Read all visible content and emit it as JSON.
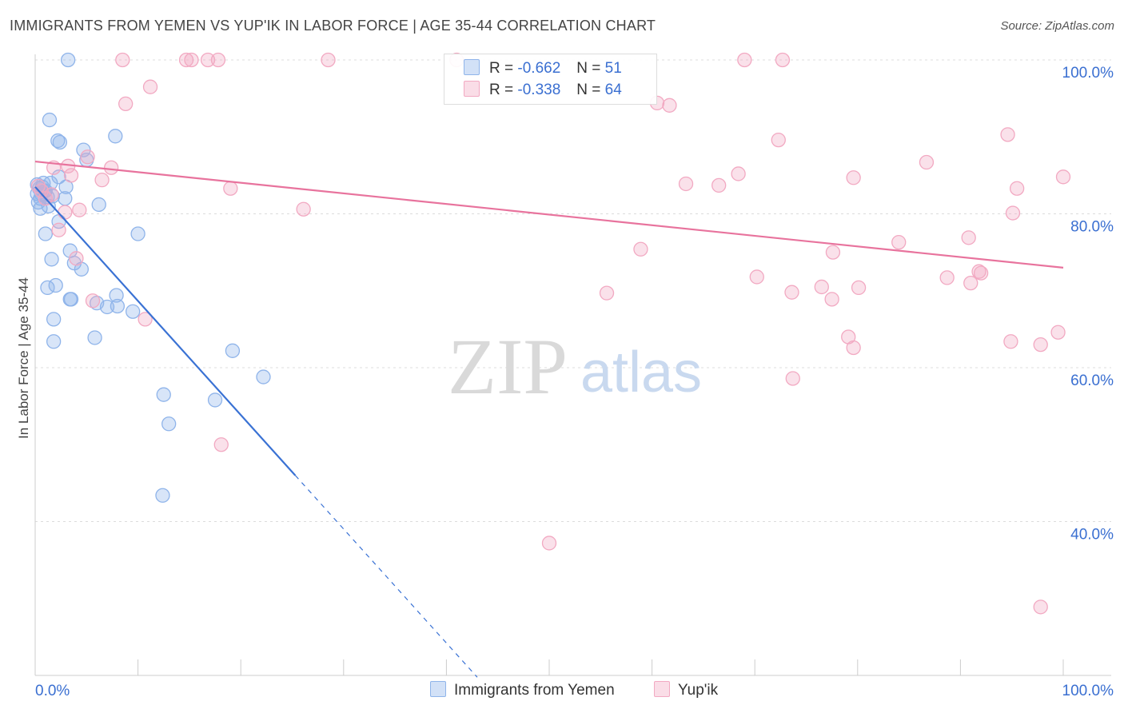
{
  "header": {
    "title": "IMMIGRANTS FROM YEMEN VS YUP'IK IN LABOR FORCE | AGE 35-44 CORRELATION CHART",
    "source": "Source: ZipAtlas.com"
  },
  "watermark": {
    "zip": "ZIP",
    "atlas": "atlas"
  },
  "legend": {
    "r_label": "R =",
    "n_label": "N =",
    "rows": [
      {
        "r": "-0.662",
        "n": "51",
        "color": "#8fb4ea"
      },
      {
        "r": "-0.338",
        "n": "64",
        "color": "#f2a9c2"
      }
    ]
  },
  "chart_data": {
    "type": "scatter",
    "title": "IMMIGRANTS FROM YEMEN VS YUP'IK IN LABOR FORCE | AGE 35-44 CORRELATION CHART",
    "xlabel": "",
    "ylabel": "In Labor Force | Age 35-44",
    "xlim": [
      0,
      100
    ],
    "ylim": [
      20,
      100
    ],
    "x_tick_labels": [
      "0.0%",
      "100.0%"
    ],
    "y_ticks": [
      40,
      60,
      80,
      100
    ],
    "y_tick_labels": [
      "40.0%",
      "60.0%",
      "80.0%",
      "100.0%"
    ],
    "grid": true,
    "legend_position": "top-center",
    "series": [
      {
        "name": "Immigrants from Yemen",
        "color": "#8fb4ea",
        "line_color": "#3a72d4",
        "trend": {
          "x0": 0,
          "y0": 83.5,
          "x1": 25.3,
          "y1": 46,
          "dashed_to_x": 43
        },
        "points": [
          [
            3.2,
            100
          ],
          [
            1.4,
            92.2
          ],
          [
            2.2,
            89.5
          ],
          [
            2.4,
            89.3
          ],
          [
            7.8,
            90.1
          ],
          [
            4.7,
            88.3
          ],
          [
            5.0,
            87.0
          ],
          [
            0.2,
            83.8
          ],
          [
            0.4,
            83.3
          ],
          [
            0.6,
            82.6
          ],
          [
            0.8,
            84.0
          ],
          [
            1.0,
            83.0
          ],
          [
            1.2,
            82.2
          ],
          [
            1.5,
            84.0
          ],
          [
            0.3,
            81.5
          ],
          [
            0.5,
            82.0
          ],
          [
            0.7,
            83.5
          ],
          [
            0.9,
            82.9
          ],
          [
            1.3,
            81.0
          ],
          [
            1.7,
            82.3
          ],
          [
            2.3,
            84.8
          ],
          [
            3.0,
            83.5
          ],
          [
            2.9,
            82.0
          ],
          [
            0.5,
            80.7
          ],
          [
            6.2,
            81.2
          ],
          [
            2.3,
            79.0
          ],
          [
            1.0,
            77.4
          ],
          [
            10.0,
            77.4
          ],
          [
            3.4,
            75.2
          ],
          [
            1.6,
            74.1
          ],
          [
            3.8,
            73.6
          ],
          [
            4.5,
            72.8
          ],
          [
            1.2,
            70.4
          ],
          [
            2.0,
            70.7
          ],
          [
            3.4,
            68.9
          ],
          [
            3.5,
            68.9
          ],
          [
            6.0,
            68.4
          ],
          [
            7.0,
            67.9
          ],
          [
            8.0,
            68.0
          ],
          [
            7.9,
            69.4
          ],
          [
            9.5,
            67.3
          ],
          [
            1.8,
            66.3
          ],
          [
            5.8,
            63.9
          ],
          [
            1.8,
            63.4
          ],
          [
            19.2,
            62.2
          ],
          [
            22.2,
            58.8
          ],
          [
            12.5,
            56.5
          ],
          [
            17.5,
            55.8
          ],
          [
            13.0,
            52.7
          ],
          [
            12.4,
            43.4
          ],
          [
            0.2,
            82.6
          ]
        ]
      },
      {
        "name": "Yup'ik",
        "color": "#f2a9c2",
        "line_color": "#e8739d",
        "trend": {
          "x0": 0,
          "y0": 86.8,
          "x1": 100,
          "y1": 73.0
        },
        "points": [
          [
            8.5,
            100
          ],
          [
            14.7,
            100
          ],
          [
            15.2,
            100
          ],
          [
            16.8,
            100
          ],
          [
            17.8,
            100
          ],
          [
            28.5,
            100
          ],
          [
            41.0,
            100
          ],
          [
            69.0,
            100
          ],
          [
            72.7,
            100
          ],
          [
            11.2,
            96.5
          ],
          [
            8.8,
            94.3
          ],
          [
            60.5,
            94.4
          ],
          [
            61.7,
            94.1
          ],
          [
            72.3,
            89.6
          ],
          [
            94.6,
            90.3
          ],
          [
            5.1,
            87.4
          ],
          [
            3.2,
            86.2
          ],
          [
            1.8,
            86.0
          ],
          [
            7.4,
            86.0
          ],
          [
            6.5,
            84.4
          ],
          [
            63.3,
            83.9
          ],
          [
            66.5,
            83.7
          ],
          [
            68.4,
            85.2
          ],
          [
            79.6,
            84.7
          ],
          [
            86.7,
            86.7
          ],
          [
            95.5,
            83.3
          ],
          [
            100,
            84.8
          ],
          [
            19.0,
            83.3
          ],
          [
            0.6,
            83.0
          ],
          [
            1.6,
            82.5
          ],
          [
            1.0,
            82.0
          ],
          [
            2.9,
            80.2
          ],
          [
            4.3,
            80.5
          ],
          [
            26.1,
            80.6
          ],
          [
            95.1,
            80.1
          ],
          [
            2.3,
            77.9
          ],
          [
            90.8,
            76.9
          ],
          [
            84.0,
            76.3
          ],
          [
            77.6,
            75.0
          ],
          [
            58.9,
            75.4
          ],
          [
            4.0,
            74.2
          ],
          [
            91.8,
            72.5
          ],
          [
            92.0,
            72.3
          ],
          [
            70.2,
            71.8
          ],
          [
            88.7,
            71.7
          ],
          [
            91.0,
            71.0
          ],
          [
            76.5,
            70.5
          ],
          [
            80.1,
            70.4
          ],
          [
            55.6,
            69.7
          ],
          [
            73.6,
            69.8
          ],
          [
            77.5,
            68.9
          ],
          [
            5.6,
            68.7
          ],
          [
            10.7,
            66.3
          ],
          [
            79.1,
            64.0
          ],
          [
            79.6,
            62.6
          ],
          [
            94.9,
            63.4
          ],
          [
            97.8,
            63.0
          ],
          [
            99.5,
            64.6
          ],
          [
            73.7,
            58.6
          ],
          [
            18.1,
            50.0
          ],
          [
            50.0,
            37.2
          ],
          [
            97.8,
            28.9
          ],
          [
            0.3,
            83.6
          ],
          [
            3.5,
            85.0
          ]
        ]
      }
    ]
  }
}
